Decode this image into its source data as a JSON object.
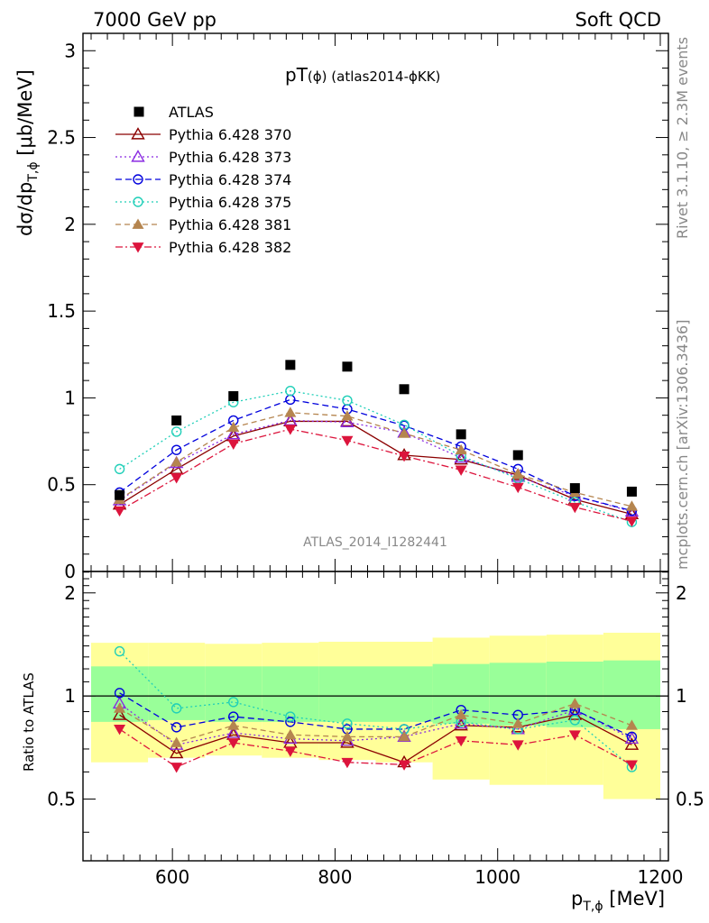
{
  "header": {
    "left": "7000 GeV pp",
    "right": "Soft QCD"
  },
  "side": {
    "rivet": "Rivet 3.1.10, ≥ 2.3M events",
    "mcplots": "mcplots.cern.ch [arXiv:1306.3436]"
  },
  "plot_title": {
    "main": "pT",
    "phi": "(ϕ)",
    "rest": " (atlas2014-ϕKK)"
  },
  "watermark": "ATLAS_2014_I1282441",
  "chart_data": [
    {
      "type": "scatter",
      "ylabel": "dσ/dp",
      "ylabel_sub": "T,ϕ",
      "ylabel_unit": " [μb/MeV]",
      "xlabel": "p",
      "xlabel_sub": "T,ϕ",
      "xlabel_unit": " [MeV]",
      "xlim": [
        490,
        1210
      ],
      "ylim": [
        0,
        3.1
      ],
      "yticks": [
        0,
        0.5,
        1,
        1.5,
        2,
        2.5,
        3
      ],
      "ytick_labels": [
        "0",
        "0.5",
        "1",
        "1.5",
        "2",
        "2.5",
        "3"
      ],
      "xticks": [
        600,
        800,
        1000,
        1200
      ],
      "xtick_labels": [
        "600",
        "800",
        "1000",
        "1200"
      ],
      "x": [
        535,
        605,
        675,
        745,
        815,
        885,
        955,
        1025,
        1095,
        1165
      ],
      "data": {
        "name": "ATLAS",
        "values": [
          0.44,
          0.87,
          1.01,
          1.19,
          1.18,
          1.05,
          0.79,
          0.67,
          0.48,
          0.46
        ]
      },
      "series": [
        {
          "name": "Pythia 6.428 370",
          "color": "#8b0000",
          "marker": "triangle-open",
          "dash": "",
          "values": [
            0.385,
            0.59,
            0.78,
            0.865,
            0.865,
            0.67,
            0.645,
            0.555,
            0.415,
            0.33
          ]
        },
        {
          "name": "Pythia 6.428 373",
          "color": "#8a2be2",
          "marker": "triangle-open",
          "dash": "2,3",
          "values": [
            0.41,
            0.625,
            0.79,
            0.87,
            0.86,
            0.8,
            0.655,
            0.545,
            0.435,
            0.345
          ]
        },
        {
          "name": "Pythia 6.428 374",
          "color": "#0000dd",
          "marker": "circle-open",
          "dash": "7,4",
          "values": [
            0.455,
            0.7,
            0.87,
            0.99,
            0.935,
            0.84,
            0.72,
            0.59,
            0.435,
            0.35
          ]
        },
        {
          "name": "Pythia 6.428 375",
          "color": "#20cfb8",
          "marker": "circle-open",
          "dash": "2,3",
          "values": [
            0.59,
            0.805,
            0.975,
            1.04,
            0.985,
            0.845,
            0.665,
            0.535,
            0.4,
            0.285
          ]
        },
        {
          "name": "Pythia 6.428 381",
          "color": "#b5854f",
          "marker": "triangle-up",
          "dash": "6,4",
          "values": [
            0.415,
            0.63,
            0.83,
            0.915,
            0.895,
            0.795,
            0.7,
            0.56,
            0.455,
            0.375
          ]
        },
        {
          "name": "Pythia 6.428 382",
          "color": "#dc143c",
          "marker": "triangle-down",
          "dash": "8,3,2,3",
          "values": [
            0.35,
            0.54,
            0.735,
            0.82,
            0.755,
            0.665,
            0.585,
            0.485,
            0.37,
            0.29
          ]
        }
      ]
    },
    {
      "type": "scatter",
      "ylabel": "Ratio to ATLAS",
      "ylim": [
        0.33,
        2.31
      ],
      "yticks": [
        0.5,
        1,
        2
      ],
      "ytick_labels": [
        "0.5",
        "1",
        "2"
      ],
      "reference_line": 1,
      "bin_edges": [
        500,
        570,
        640,
        710,
        780,
        850,
        920,
        990,
        1060,
        1130,
        1200
      ],
      "band_inner": {
        "low": [
          0.84,
          0.85,
          0.84,
          0.84,
          0.84,
          0.84,
          0.83,
          0.82,
          0.81,
          0.8
        ],
        "high": [
          1.22,
          1.22,
          1.22,
          1.22,
          1.22,
          1.22,
          1.24,
          1.25,
          1.26,
          1.27
        ]
      },
      "band_outer": {
        "low": [
          0.64,
          0.66,
          0.67,
          0.66,
          0.65,
          0.64,
          0.57,
          0.55,
          0.55,
          0.5
        ],
        "high": [
          1.43,
          1.43,
          1.42,
          1.43,
          1.44,
          1.44,
          1.48,
          1.5,
          1.51,
          1.53
        ]
      },
      "ratios": [
        [
          0.88,
          0.68,
          0.77,
          0.73,
          0.73,
          0.64,
          0.82,
          0.81,
          0.88,
          0.72
        ],
        [
          0.95,
          0.72,
          0.78,
          0.75,
          0.74,
          0.76,
          0.83,
          0.8,
          0.91,
          0.75
        ],
        [
          1.02,
          0.81,
          0.87,
          0.84,
          0.8,
          0.8,
          0.91,
          0.88,
          0.91,
          0.76
        ],
        [
          1.35,
          0.92,
          0.96,
          0.87,
          0.83,
          0.8,
          0.84,
          0.8,
          0.85,
          0.62
        ],
        [
          0.92,
          0.73,
          0.82,
          0.77,
          0.76,
          0.76,
          0.88,
          0.83,
          0.95,
          0.82
        ],
        [
          0.8,
          0.62,
          0.73,
          0.69,
          0.64,
          0.63,
          0.74,
          0.72,
          0.77,
          0.63
        ]
      ]
    }
  ]
}
